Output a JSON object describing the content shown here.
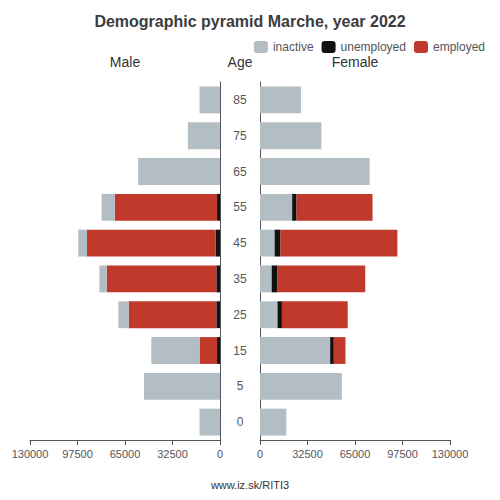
{
  "chart_data": {
    "type": "bar",
    "orientation": "horizontal",
    "stacked": true,
    "grid": false,
    "title": "Demographic pyramid Marche, year 2022",
    "ylabel": "Age",
    "annotations": [
      "www.iz.sk/RITI3"
    ],
    "categories": [
      "0",
      "5",
      "15",
      "25",
      "35",
      "45",
      "55",
      "65",
      "75",
      "85"
    ],
    "panels": [
      {
        "title": "Male",
        "xlim": [
          130000,
          0
        ],
        "xticks": [
          130000,
          97500,
          65000,
          32500,
          0
        ],
        "series": [
          {
            "name": "unemployed",
            "color": "#111111",
            "values": [
              0,
              0,
              2000,
              2500,
              2500,
              3000,
              2000,
              0,
              0,
              0
            ]
          },
          {
            "name": "employed",
            "color": "#c0392b",
            "values": [
              0,
              0,
              12000,
              60000,
              75000,
              88000,
              70000,
              0,
              0,
              0
            ]
          },
          {
            "name": "inactive",
            "color": "#b2bec3",
            "values": [
              14000,
              52000,
              33000,
              7000,
              5000,
              6000,
              9000,
              56000,
              22000,
              14000
            ]
          }
        ]
      },
      {
        "title": "Female",
        "legend": "upper right",
        "xlim": [
          0,
          130000
        ],
        "xticks": [
          0,
          32500,
          65000,
          97500,
          130000
        ],
        "series": [
          {
            "name": "inactive",
            "color": "#b2bec3",
            "values": [
              18000,
              56000,
              48000,
              12000,
              8000,
              10000,
              22000,
              75000,
              42000,
              28000
            ]
          },
          {
            "name": "unemployed",
            "color": "#111111",
            "values": [
              0,
              0,
              2500,
              3000,
              4000,
              4000,
              3000,
              0,
              0,
              0
            ]
          },
          {
            "name": "employed",
            "color": "#c0392b",
            "values": [
              0,
              0,
              8000,
              45000,
              60000,
              80000,
              52000,
              0,
              0,
              0
            ]
          }
        ]
      }
    ]
  }
}
